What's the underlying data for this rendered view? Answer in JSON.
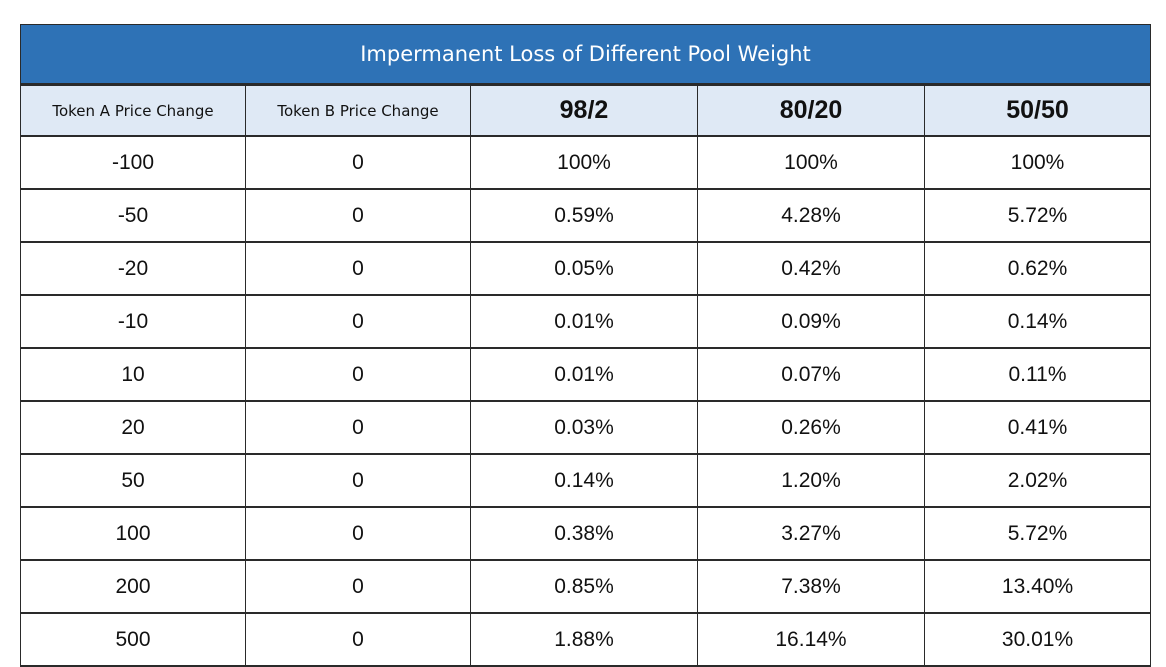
{
  "chart_data": {
    "type": "table",
    "title": "Impermanent Loss of Different Pool Weight",
    "columns": [
      "Token A Price Change",
      "Token B Price Change",
      "98/2",
      "80/20",
      "50/50"
    ],
    "rows": [
      [
        "-100",
        "0",
        "100%",
        "100%",
        "100%"
      ],
      [
        "-50",
        "0",
        "0.59%",
        "4.28%",
        "5.72%"
      ],
      [
        "-20",
        "0",
        "0.05%",
        "0.42%",
        "0.62%"
      ],
      [
        "-10",
        "0",
        "0.01%",
        "0.09%",
        "0.14%"
      ],
      [
        "10",
        "0",
        "0.01%",
        "0.07%",
        "0.11%"
      ],
      [
        "20",
        "0",
        "0.03%",
        "0.26%",
        "0.41%"
      ],
      [
        "50",
        "0",
        "0.14%",
        "1.20%",
        "2.02%"
      ],
      [
        "100",
        "0",
        "0.38%",
        "3.27%",
        "5.72%"
      ],
      [
        "200",
        "0",
        "0.85%",
        "7.38%",
        "13.40%"
      ],
      [
        "500",
        "0",
        "1.88%",
        "16.14%",
        "30.01%"
      ]
    ]
  },
  "colors": {
    "title_bg": "#2e72b6",
    "title_text": "#ffffff",
    "header_bg": "#dfe9f5",
    "grid": "#2a2a2a"
  }
}
